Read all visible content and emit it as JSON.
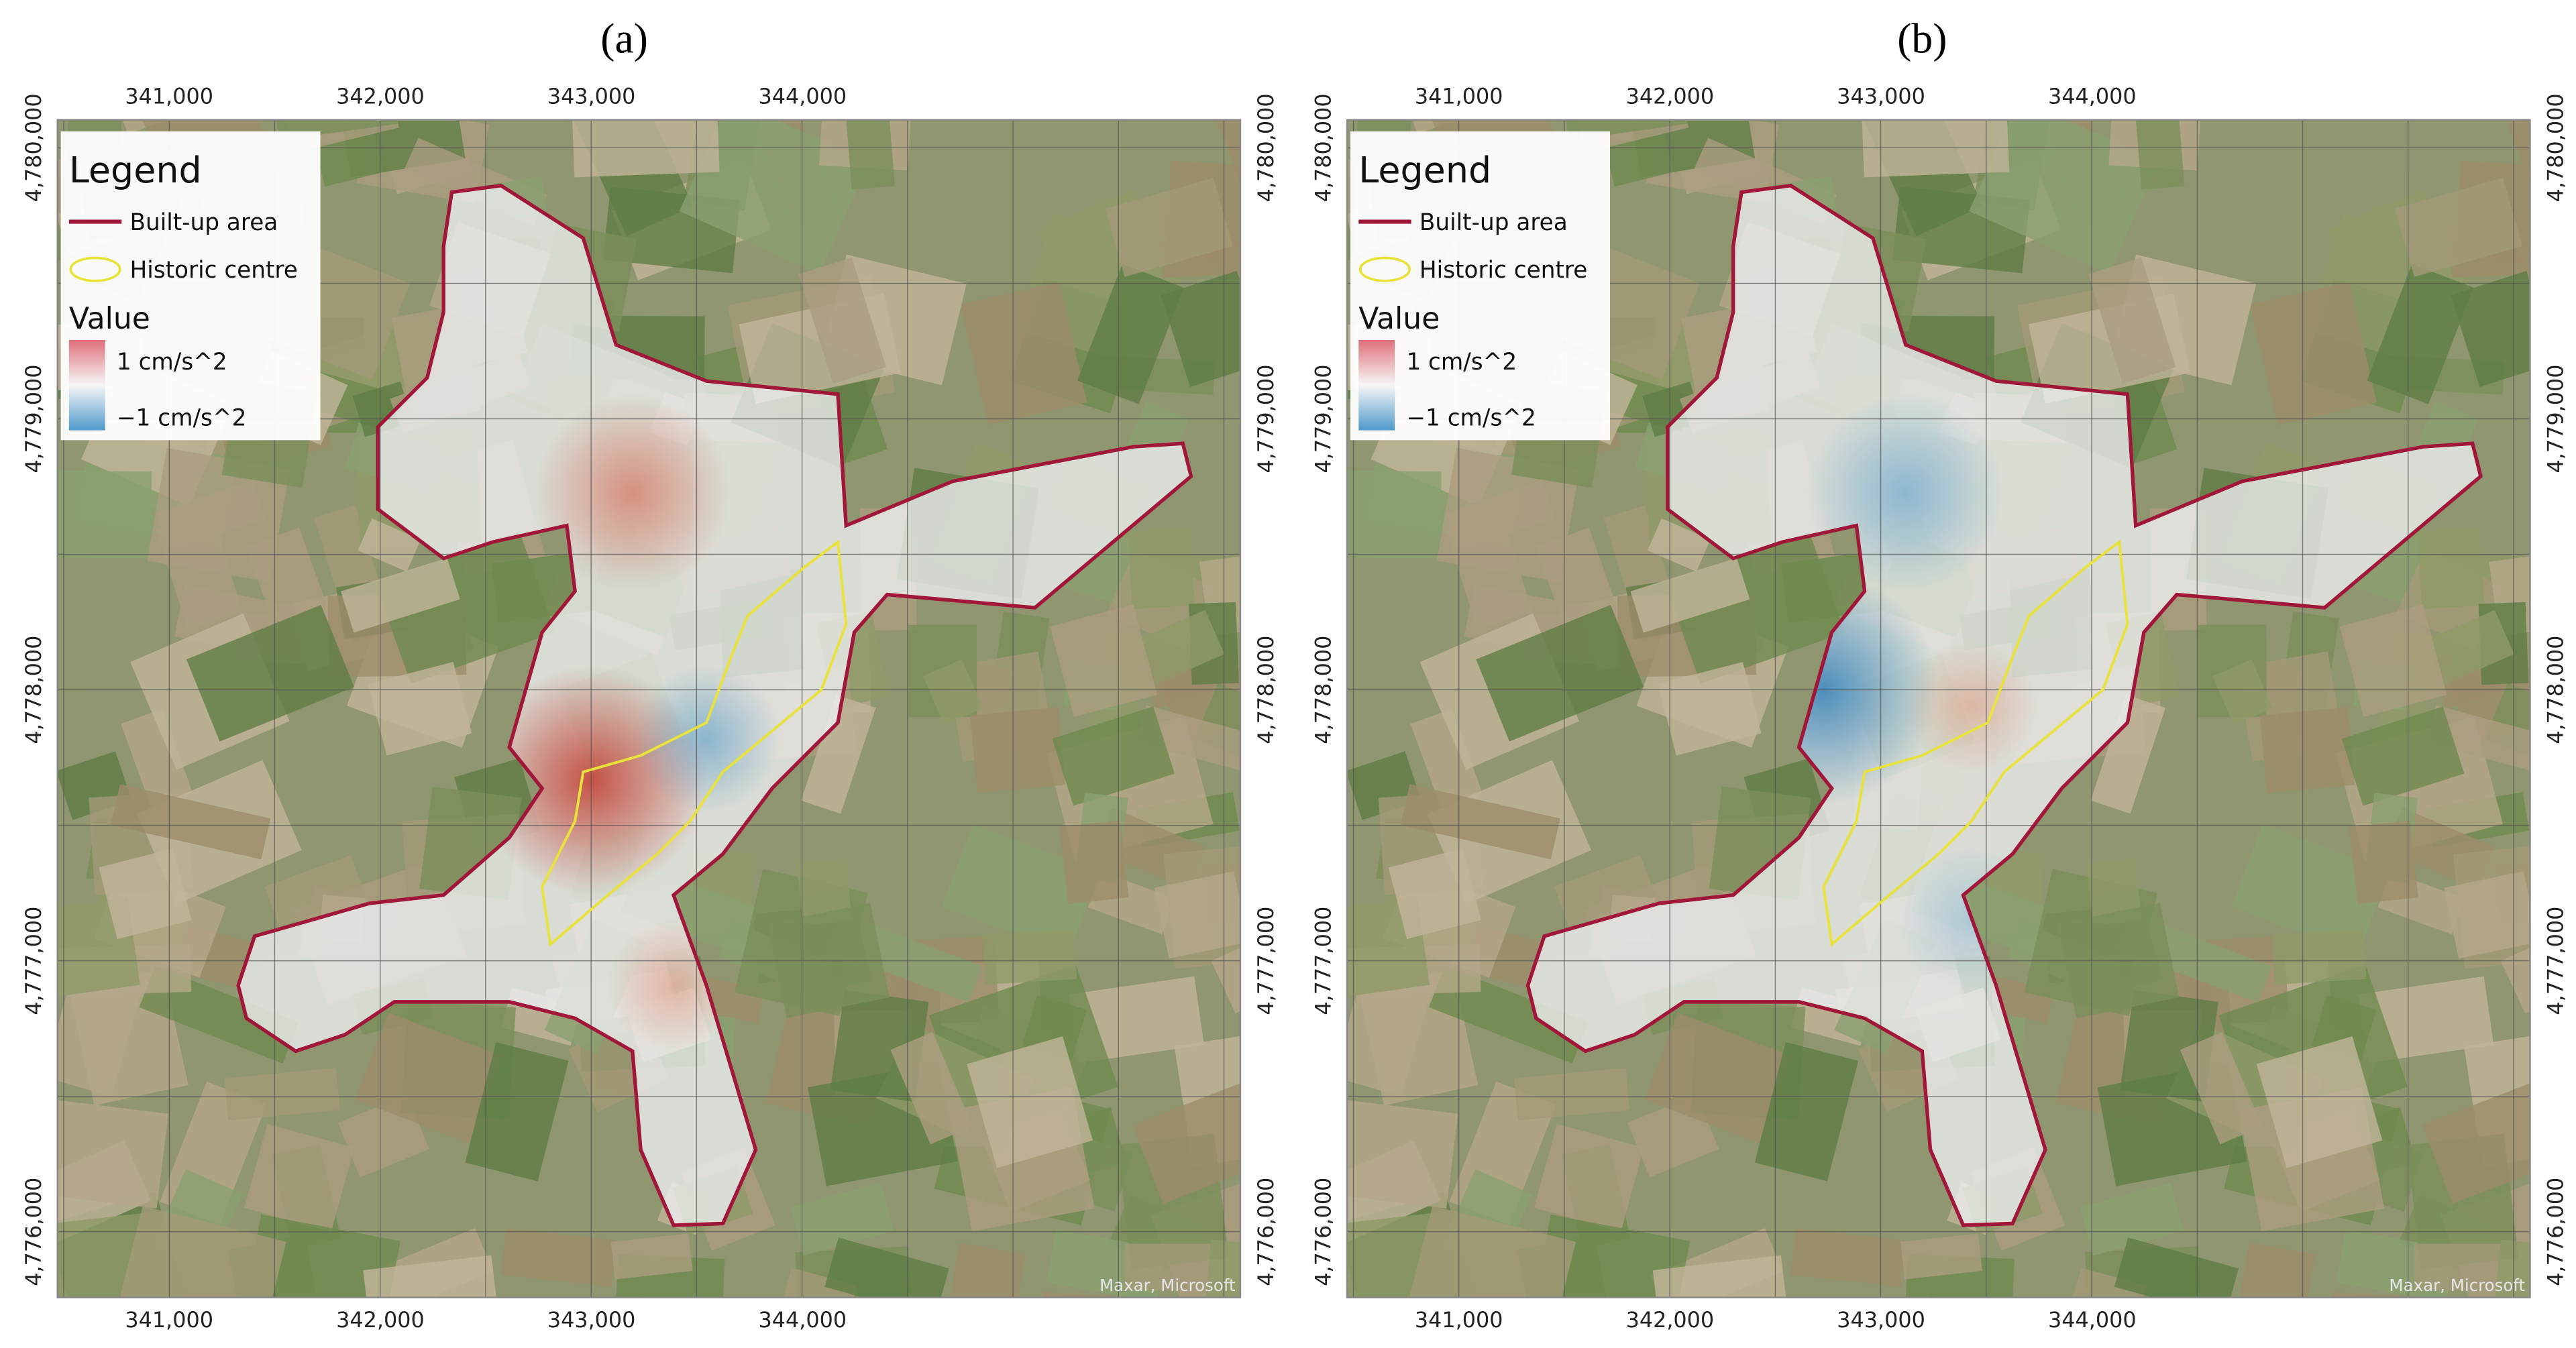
{
  "panels": [
    {
      "label": "(a)",
      "x_ticks": [
        "341,000",
        "342,000",
        "343,000",
        "344,000"
      ],
      "y_ticks": [
        "4,780,000",
        "4,779,000",
        "4,778,000",
        "4,777,000",
        "4,776,000"
      ],
      "legend": {
        "title": "Legend",
        "items": [
          "Built-up area",
          "Historic centre"
        ],
        "value_title": "Value",
        "value_high": "1 cm/s^2",
        "value_low": "−1 cm/s^2"
      },
      "attribution": "Maxar, Microsoft"
    },
    {
      "label": "(b)",
      "x_ticks": [
        "341,000",
        "342,000",
        "343,000",
        "344,000"
      ],
      "y_ticks": [
        "4,780,000",
        "4,779,000",
        "4,778,000",
        "4,777,000",
        "4,776,000"
      ],
      "legend": {
        "title": "Legend",
        "items": [
          "Built-up area",
          "Historic centre"
        ],
        "value_title": "Value",
        "value_high": "1 cm/s^2",
        "value_low": "−1 cm/s^2"
      },
      "attribution": "Maxar, Microsoft"
    }
  ]
}
